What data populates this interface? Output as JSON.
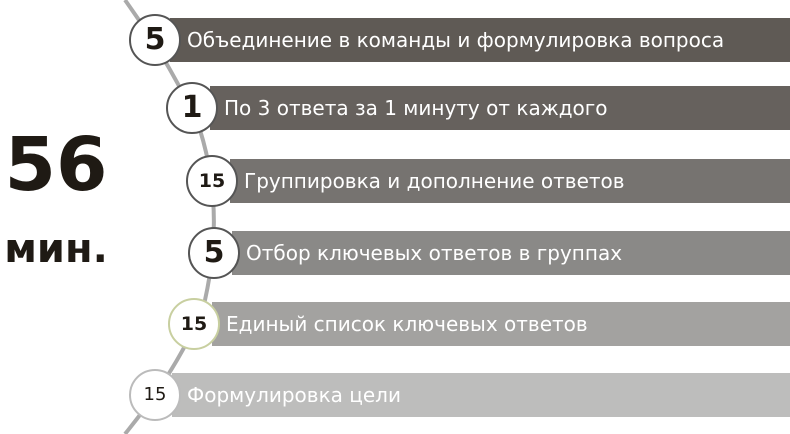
{
  "total": {
    "value": "56",
    "unit": "мин."
  },
  "steps": [
    {
      "minutes": "5",
      "label": "Объединение в команды и формулировка вопроса",
      "color": "#5f5a55"
    },
    {
      "minutes": "1",
      "label": "По 3 ответа за 1 минуту от каждого",
      "color": "#66615d"
    },
    {
      "minutes": "15",
      "label": "Группировка и дополнение ответов",
      "color": "#767370"
    },
    {
      "minutes": "5",
      "label": "Отбор ключевых ответов в группах",
      "color": "#8a8987"
    },
    {
      "minutes": "15",
      "label": "Единый список ключевых ответов",
      "color": "#a3a2a0"
    },
    {
      "minutes": "15",
      "label": "Формулировка цели",
      "color": "#bdbdbc"
    }
  ]
}
